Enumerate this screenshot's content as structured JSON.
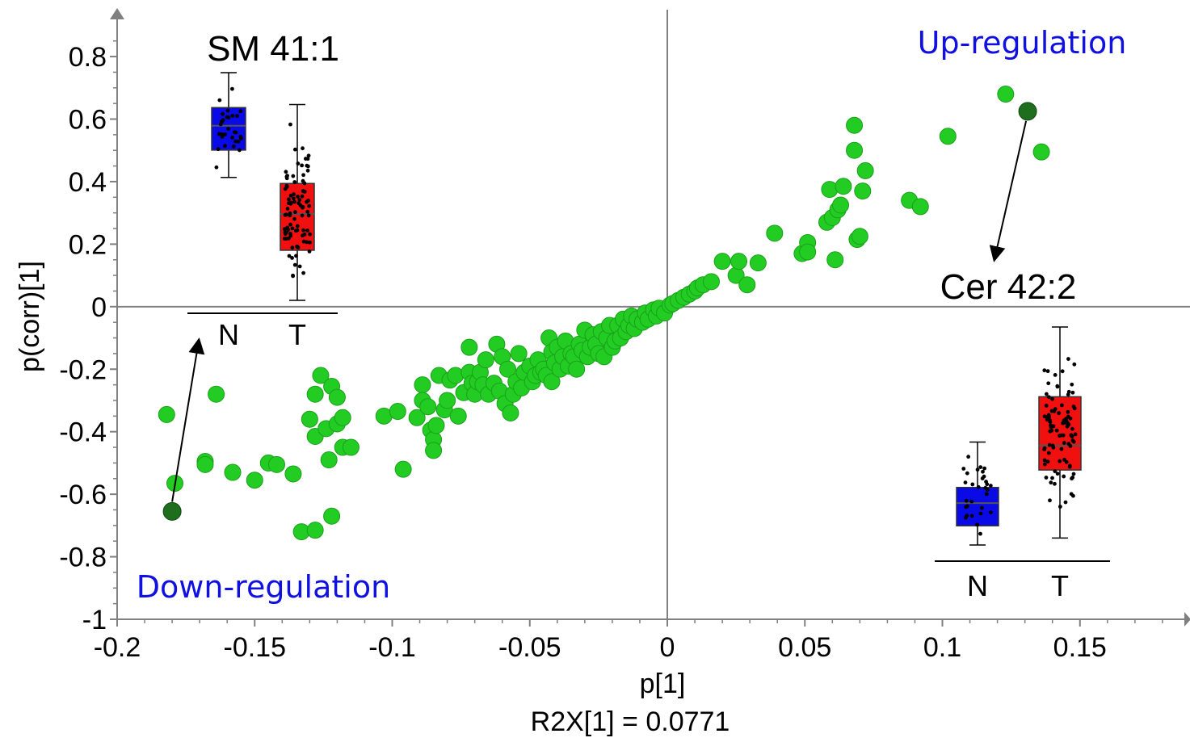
{
  "chart_data": {
    "type": "scatter",
    "xlabel": "p[1]",
    "ylabel": "p(corr)[1]",
    "footnote": "R2X[1] = 0.0771",
    "xlim": [
      -0.2,
      0.195
    ],
    "ylim": [
      -1,
      0.95
    ],
    "xticks": [
      "-0.2",
      "-0.15",
      "-0.1",
      "-0.05",
      "0",
      "0.05",
      "0.1",
      "0.15"
    ],
    "yticks": [
      "0.8",
      "0.6",
      "0.4",
      "0.2",
      "0",
      "-0.2",
      "-0.4",
      "-0.6",
      "-0.8",
      "-1"
    ],
    "annotations": {
      "up": "Up-regulation",
      "down": "Down-regulation",
      "up_color": "#1010e0",
      "down_color": "#1010e0"
    },
    "point_color": "#22cc22",
    "highlight_color": "#1e6e1e",
    "highlighted": [
      {
        "x": -0.18,
        "y": -0.655,
        "label": "SM 41:1"
      },
      {
        "x": 0.131,
        "y": 0.625,
        "label": "Cer 42:2"
      }
    ],
    "points": [
      [
        -0.182,
        -0.345
      ],
      [
        -0.179,
        -0.565
      ],
      [
        -0.168,
        -0.495
      ],
      [
        -0.168,
        -0.505
      ],
      [
        -0.164,
        -0.28
      ],
      [
        -0.158,
        -0.53
      ],
      [
        -0.15,
        -0.555
      ],
      [
        -0.145,
        -0.5
      ],
      [
        -0.142,
        -0.505
      ],
      [
        -0.136,
        -0.535
      ],
      [
        -0.133,
        -0.72
      ],
      [
        -0.128,
        -0.715
      ],
      [
        -0.122,
        -0.67
      ],
      [
        -0.13,
        -0.36
      ],
      [
        -0.128,
        -0.28
      ],
      [
        -0.128,
        -0.415
      ],
      [
        -0.126,
        -0.22
      ],
      [
        -0.124,
        -0.39
      ],
      [
        -0.123,
        -0.49
      ],
      [
        -0.122,
        -0.255
      ],
      [
        -0.12,
        -0.29
      ],
      [
        -0.12,
        -0.375
      ],
      [
        -0.118,
        -0.45
      ],
      [
        -0.118,
        -0.355
      ],
      [
        -0.115,
        -0.45
      ],
      [
        -0.103,
        -0.35
      ],
      [
        -0.098,
        -0.335
      ],
      [
        -0.096,
        -0.52
      ],
      [
        -0.091,
        -0.355
      ],
      [
        -0.089,
        -0.25
      ],
      [
        -0.089,
        -0.3
      ],
      [
        -0.087,
        -0.32
      ],
      [
        -0.086,
        -0.395
      ],
      [
        -0.085,
        -0.425
      ],
      [
        -0.085,
        -0.46
      ],
      [
        -0.084,
        -0.38
      ],
      [
        -0.083,
        -0.22
      ],
      [
        -0.081,
        -0.33
      ],
      [
        -0.08,
        -0.3
      ],
      [
        -0.079,
        -0.235
      ],
      [
        -0.077,
        -0.22
      ],
      [
        -0.076,
        -0.35
      ],
      [
        -0.074,
        -0.275
      ],
      [
        -0.072,
        -0.13
      ],
      [
        -0.072,
        -0.21
      ],
      [
        -0.071,
        -0.245
      ],
      [
        -0.07,
        -0.28
      ],
      [
        -0.069,
        -0.24
      ],
      [
        -0.068,
        -0.21
      ],
      [
        -0.067,
        -0.25
      ],
      [
        -0.066,
        -0.17
      ],
      [
        -0.065,
        -0.28
      ],
      [
        -0.063,
        -0.245
      ],
      [
        -0.062,
        -0.12
      ],
      [
        -0.061,
        -0.27
      ],
      [
        -0.06,
        -0.16
      ],
      [
        -0.059,
        -0.31
      ],
      [
        -0.058,
        -0.2
      ],
      [
        -0.057,
        -0.34
      ],
      [
        -0.056,
        -0.28
      ],
      [
        -0.055,
        -0.24
      ],
      [
        -0.054,
        -0.15
      ],
      [
        -0.053,
        -0.26
      ],
      [
        -0.052,
        -0.21
      ],
      [
        -0.05,
        -0.19
      ],
      [
        -0.049,
        -0.24
      ],
      [
        -0.048,
        -0.22
      ],
      [
        -0.047,
        -0.17
      ],
      [
        -0.046,
        -0.21
      ],
      [
        -0.045,
        -0.2
      ],
      [
        -0.044,
        -0.22
      ],
      [
        -0.043,
        -0.1
      ],
      [
        -0.042,
        -0.145
      ],
      [
        -0.042,
        -0.24
      ],
      [
        -0.041,
        -0.18
      ],
      [
        -0.04,
        -0.13
      ],
      [
        -0.039,
        -0.2
      ],
      [
        -0.038,
        -0.16
      ],
      [
        -0.037,
        -0.11
      ],
      [
        -0.036,
        -0.19
      ],
      [
        -0.035,
        -0.15
      ],
      [
        -0.034,
        -0.16
      ],
      [
        -0.033,
        -0.2
      ],
      [
        -0.032,
        -0.12
      ],
      [
        -0.031,
        -0.14
      ],
      [
        -0.03,
        -0.075
      ],
      [
        -0.029,
        -0.16
      ],
      [
        -0.028,
        -0.13
      ],
      [
        -0.027,
        -0.09
      ],
      [
        -0.026,
        -0.12
      ],
      [
        -0.025,
        -0.15
      ],
      [
        -0.024,
        -0.08
      ],
      [
        -0.023,
        -0.16
      ],
      [
        -0.022,
        -0.1
      ],
      [
        -0.021,
        -0.06
      ],
      [
        -0.02,
        -0.13
      ],
      [
        -0.019,
        -0.11
      ],
      [
        -0.018,
        -0.06
      ],
      [
        -0.017,
        -0.1
      ],
      [
        -0.016,
        -0.04
      ],
      [
        -0.015,
        -0.08
      ],
      [
        -0.014,
        -0.06
      ],
      [
        -0.013,
        -0.03
      ],
      [
        -0.012,
        -0.07
      ],
      [
        -0.011,
        -0.04
      ],
      [
        -0.009,
        -0.05
      ],
      [
        -0.008,
        -0.02
      ],
      [
        -0.007,
        -0.04
      ],
      [
        -0.005,
        -0.01
      ],
      [
        -0.004,
        -0.03
      ],
      [
        -0.003,
        -0.005
      ],
      [
        -0.001,
        -0.02
      ],
      [
        0.001,
        0.005
      ],
      [
        0.002,
        0.01
      ],
      [
        0.004,
        0.02
      ],
      [
        0.006,
        0.03
      ],
      [
        0.008,
        0.04
      ],
      [
        0.01,
        0.05
      ],
      [
        0.011,
        0.06
      ],
      [
        0.013,
        0.07
      ],
      [
        0.016,
        0.08
      ],
      [
        0.02,
        0.145
      ],
      [
        0.025,
        0.1
      ],
      [
        0.026,
        0.145
      ],
      [
        0.029,
        0.07
      ],
      [
        0.033,
        0.14
      ],
      [
        0.039,
        0.235
      ],
      [
        0.049,
        0.17
      ],
      [
        0.051,
        0.205
      ],
      [
        0.051,
        0.175
      ],
      [
        0.058,
        0.27
      ],
      [
        0.059,
        0.375
      ],
      [
        0.06,
        0.285
      ],
      [
        0.061,
        0.15
      ],
      [
        0.062,
        0.31
      ],
      [
        0.063,
        0.325
      ],
      [
        0.064,
        0.385
      ],
      [
        0.068,
        0.5
      ],
      [
        0.068,
        0.58
      ],
      [
        0.069,
        0.215
      ],
      [
        0.07,
        0.225
      ],
      [
        0.071,
        0.37
      ],
      [
        0.072,
        0.435
      ],
      [
        0.088,
        0.34
      ],
      [
        0.092,
        0.32
      ],
      [
        0.102,
        0.545
      ],
      [
        0.123,
        0.68
      ],
      [
        0.136,
        0.495
      ]
    ],
    "insets": [
      {
        "title": "SM 41:1",
        "categories": [
          "N",
          "T"
        ],
        "boxes": [
          {
            "group": "N",
            "color": "#0a0ae6",
            "whisker_high": 0.78,
            "q3": 0.665,
            "median": 0.605,
            "q1": 0.525,
            "whisker_low": 0.435
          },
          {
            "group": "T",
            "color": "#f01010",
            "whisker_high": 0.675,
            "q3": 0.415,
            "median": 0.315,
            "q1": 0.195,
            "whisker_low": 0.03
          }
        ]
      },
      {
        "title": "Cer 42:2",
        "categories": [
          "N",
          "T"
        ],
        "boxes": [
          {
            "group": "N",
            "color": "#0a0ae6",
            "whisker_high": -0.38,
            "q3": -0.51,
            "median": -0.555,
            "q1": -0.62,
            "whisker_low": -0.675
          },
          {
            "group": "T",
            "color": "#f01010",
            "whisker_high": -0.05,
            "q3": -0.25,
            "median": -0.39,
            "q1": -0.46,
            "whisker_low": -0.655
          }
        ]
      }
    ]
  }
}
